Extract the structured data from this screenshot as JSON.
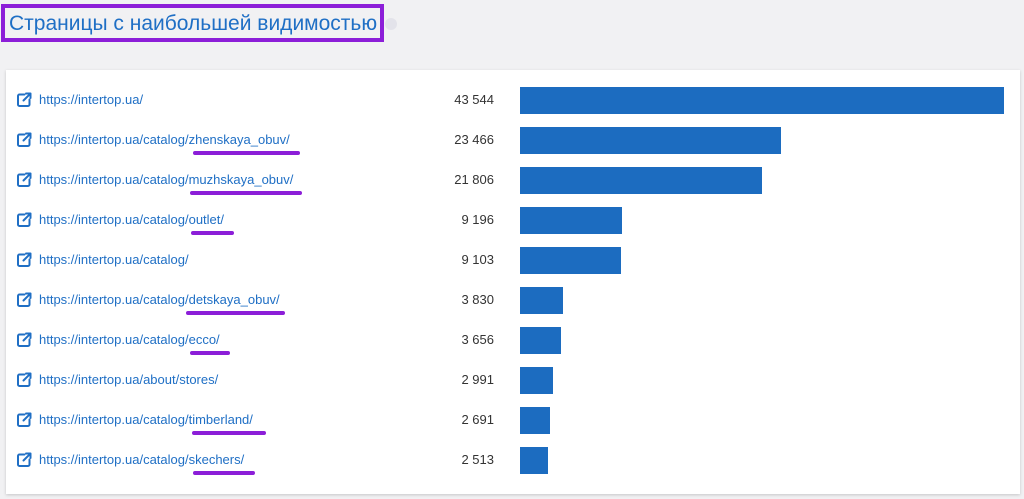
{
  "header": {
    "title": "Страницы с наибольшей видимостью"
  },
  "colors": {
    "accent_link": "#1f6fc5",
    "bar": "#1c6cc0",
    "highlight": "#8c1ed8"
  },
  "pages": [
    {
      "url": "https://intertop.ua/",
      "visibility_label": "43 544",
      "visibility": 43544
    },
    {
      "url": "https://intertop.ua/catalog/zhenskaya_obuv/",
      "visibility_label": "23 466",
      "visibility": 23466
    },
    {
      "url": "https://intertop.ua/catalog/muzhskaya_obuv/",
      "visibility_label": "21 806",
      "visibility": 21806
    },
    {
      "url": "https://intertop.ua/catalog/outlet/",
      "visibility_label": "9 196",
      "visibility": 9196
    },
    {
      "url": "https://intertop.ua/catalog/",
      "visibility_label": "9 103",
      "visibility": 9103
    },
    {
      "url": "https://intertop.ua/catalog/detskaya_obuv/",
      "visibility_label": "3 830",
      "visibility": 3830
    },
    {
      "url": "https://intertop.ua/catalog/ecco/",
      "visibility_label": "3 656",
      "visibility": 3656
    },
    {
      "url": "https://intertop.ua/about/stores/",
      "visibility_label": "2 991",
      "visibility": 2991
    },
    {
      "url": "https://intertop.ua/catalog/timberland/",
      "visibility_label": "2 691",
      "visibility": 2691
    },
    {
      "url": "https://intertop.ua/catalog/skechers/",
      "visibility_label": "2 513",
      "visibility": 2513
    }
  ],
  "icons": {
    "row_icon": "external-link-icon"
  }
}
